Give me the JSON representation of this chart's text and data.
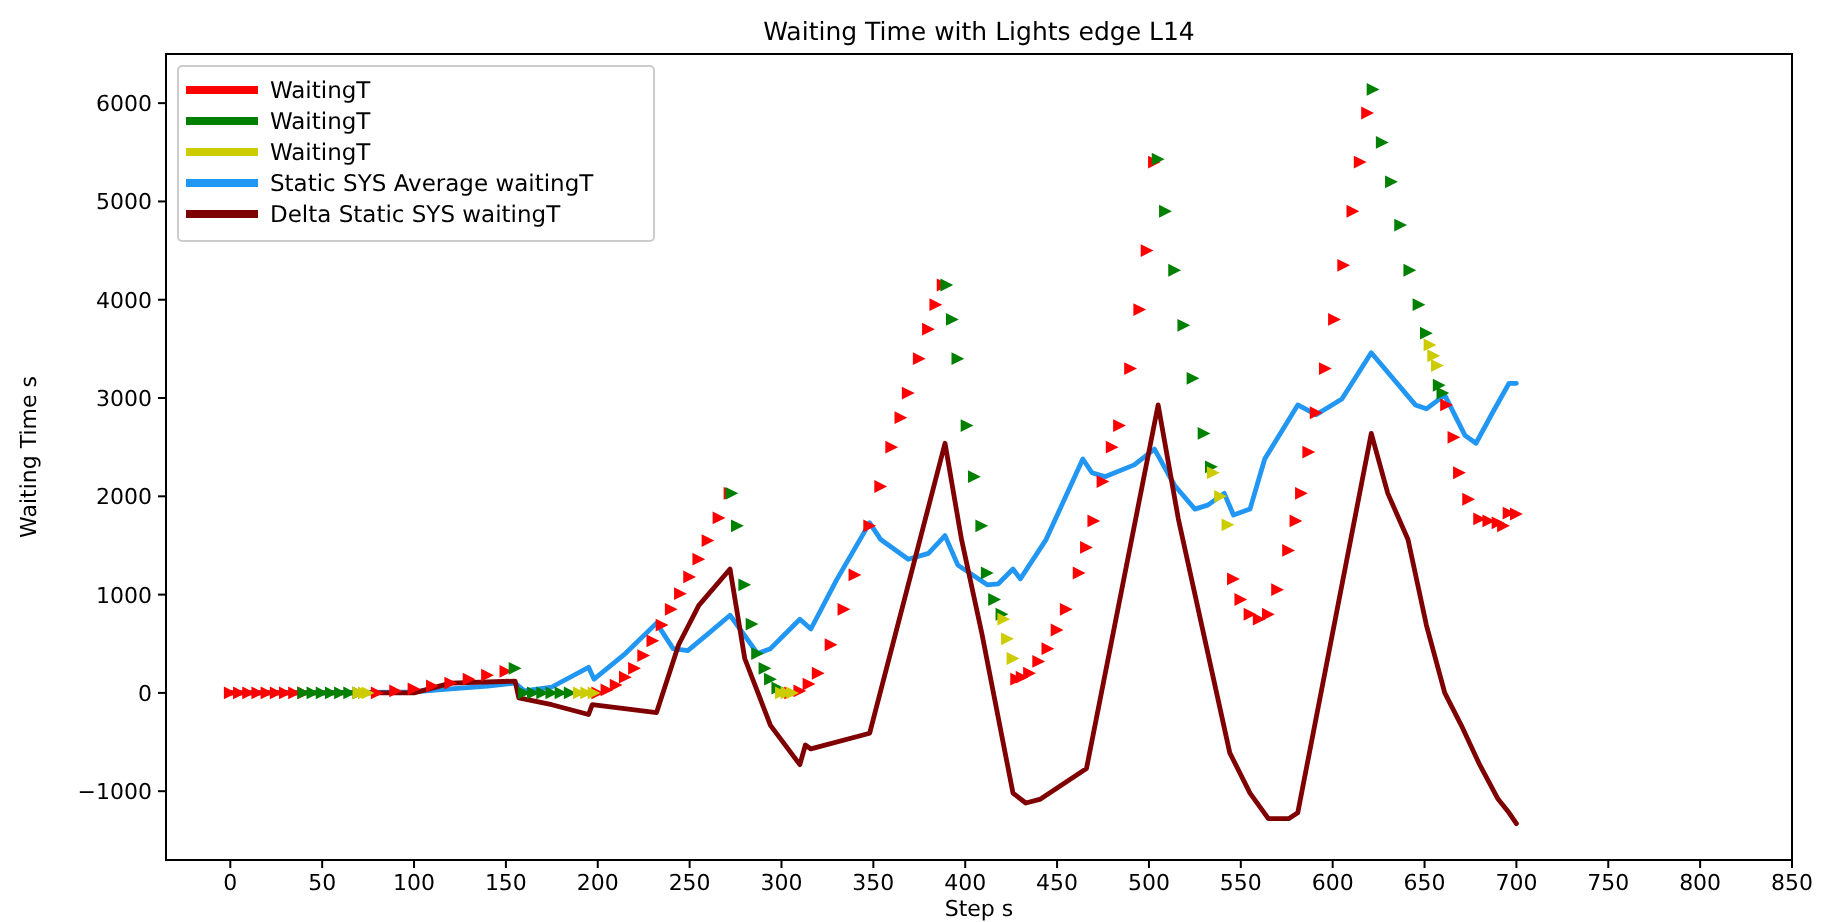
{
  "chart_data": {
    "type": "line",
    "title": "Waiting Time with Lights edge L14",
    "xlabel": "Step s",
    "ylabel": "Waiting Time s",
    "xlim": [
      -35,
      850
    ],
    "xticks": [
      0,
      50,
      100,
      150,
      200,
      250,
      300,
      350,
      400,
      450,
      500,
      550,
      600,
      650,
      700,
      750,
      800,
      850
    ],
    "ylim": [
      -1700,
      6500
    ],
    "yticks": [
      -1000,
      0,
      1000,
      2000,
      3000,
      4000,
      5000,
      6000
    ],
    "grid": false,
    "legend": "top left",
    "series": [
      {
        "name": "WaitingT",
        "type": "scatter",
        "marker": "triangle",
        "color": "#ff0000",
        "x": [
          0,
          5,
          10,
          15,
          20,
          25,
          30,
          35,
          40,
          80,
          90,
          100,
          110,
          120,
          130,
          140,
          150,
          200,
          205,
          210,
          215,
          220,
          225,
          230,
          235,
          240,
          245,
          250,
          255,
          260,
          266,
          272,
          305,
          310,
          315,
          320,
          327,
          334,
          340,
          348,
          354,
          360,
          365,
          369,
          375,
          380,
          384,
          388,
          428,
          431,
          435,
          440,
          445,
          450,
          455,
          462,
          466,
          470,
          475,
          480,
          484,
          490,
          495,
          499,
          503,
          546,
          550,
          555,
          560,
          565,
          570,
          576,
          580,
          583,
          587,
          591,
          596,
          601,
          606,
          611,
          615,
          619,
          662,
          666,
          669,
          674,
          680,
          685,
          690,
          693,
          696,
          700
        ],
        "values": [
          0,
          0,
          0,
          0,
          0,
          0,
          0,
          0,
          0,
          0,
          20,
          40,
          70,
          100,
          140,
          180,
          220,
          0,
          30,
          80,
          160,
          250,
          380,
          530,
          690,
          850,
          1010,
          1180,
          1360,
          1550,
          1780,
          2030,
          0,
          20,
          90,
          200,
          490,
          850,
          1200,
          1700,
          2100,
          2500,
          2800,
          3050,
          3400,
          3700,
          3950,
          4150,
          140,
          160,
          200,
          320,
          450,
          640,
          850,
          1220,
          1480,
          1750,
          2150,
          2500,
          2720,
          3300,
          3900,
          4500,
          5400,
          1160,
          950,
          800,
          750,
          800,
          1050,
          1450,
          1750,
          2030,
          2450,
          2850,
          3300,
          3800,
          4350,
          4900,
          5400,
          5900,
          2930,
          2600,
          2240,
          1970,
          1770,
          1750,
          1730,
          1700,
          1830,
          1820
        ]
      },
      {
        "name": "WaitingT",
        "type": "scatter",
        "marker": "triangle",
        "color": "#008000",
        "x": [
          40,
          45,
          50,
          55,
          60,
          65,
          70,
          155,
          160,
          165,
          170,
          175,
          180,
          185,
          273,
          276,
          280,
          284,
          287,
          291,
          294,
          298,
          390,
          393,
          396,
          401,
          405,
          409,
          412,
          416,
          420,
          505,
          509,
          514,
          519,
          524,
          530,
          534,
          622,
          627,
          632,
          637,
          642,
          647,
          651,
          658,
          660
        ],
        "values": [
          0,
          0,
          0,
          0,
          0,
          0,
          0,
          250,
          0,
          0,
          0,
          0,
          0,
          0,
          2030,
          1700,
          1100,
          700,
          400,
          250,
          140,
          50,
          4150,
          3800,
          3400,
          2720,
          2200,
          1700,
          1220,
          950,
          800,
          5430,
          4900,
          4300,
          3740,
          3200,
          2640,
          2300,
          6140,
          5600,
          5200,
          4760,
          4300,
          3950,
          3660,
          3130,
          3050
        ]
      },
      {
        "name": "WaitingT",
        "type": "scatter",
        "marker": "triangle",
        "color": "#cccc00",
        "x": [
          70,
          73,
          75,
          190,
          194,
          198,
          300,
          303,
          306,
          421,
          423,
          426,
          535,
          539,
          543,
          653,
          655,
          657
        ],
        "values": [
          0,
          0,
          0,
          0,
          0,
          0,
          0,
          0,
          0,
          750,
          550,
          350,
          2240,
          2000,
          1710,
          3540,
          3430,
          3330
        ]
      },
      {
        "name": "Static SYS Average waitingT",
        "color": "#2196f3",
        "x": [
          0,
          50,
          100,
          120,
          140,
          155,
          160,
          175,
          195,
          198,
          215,
          232,
          241,
          249,
          260,
          272,
          287,
          294,
          310,
          316,
          330,
          348,
          354,
          369,
          380,
          389,
          396,
          412,
          418,
          426,
          430,
          444,
          464,
          469,
          476,
          492,
          503,
          514,
          525,
          532,
          541,
          546,
          555,
          563,
          581,
          591,
          605,
          621,
          645,
          651,
          661,
          672,
          678,
          687,
          696,
          700
        ],
        "values": [
          0,
          0,
          10,
          40,
          70,
          100,
          20,
          60,
          260,
          140,
          400,
          710,
          450,
          430,
          600,
          790,
          400,
          450,
          750,
          650,
          1150,
          1730,
          1560,
          1360,
          1420,
          1600,
          1300,
          1100,
          1110,
          1260,
          1160,
          1560,
          2380,
          2240,
          2200,
          2320,
          2480,
          2110,
          1870,
          1910,
          2030,
          1810,
          1870,
          2380,
          2930,
          2830,
          2990,
          3460,
          2930,
          2890,
          3030,
          2620,
          2540,
          2850,
          3150,
          3150
        ]
      },
      {
        "name": "Delta Static SYS waitingT",
        "color": "#7f0000",
        "x": [
          0,
          50,
          100,
          120,
          155,
          157,
          175,
          195,
          197,
          232,
          244,
          255,
          272,
          280,
          294,
          310,
          313,
          316,
          348,
          389,
          398,
          409,
          426,
          433,
          441,
          466,
          505,
          516,
          544,
          555,
          565,
          576,
          581,
          621,
          630,
          641,
          651,
          661,
          670,
          680,
          690,
          696,
          700
        ],
        "values": [
          0,
          0,
          0,
          100,
          120,
          -50,
          -120,
          -220,
          -120,
          -200,
          490,
          890,
          1260,
          350,
          -330,
          -730,
          -530,
          -570,
          -410,
          2540,
          1560,
          610,
          -1020,
          -1120,
          -1080,
          -770,
          2930,
          1770,
          -610,
          -1020,
          -1280,
          -1280,
          -1220,
          2640,
          2030,
          1560,
          690,
          0,
          -330,
          -730,
          -1080,
          -1220,
          -1330
        ]
      }
    ]
  }
}
